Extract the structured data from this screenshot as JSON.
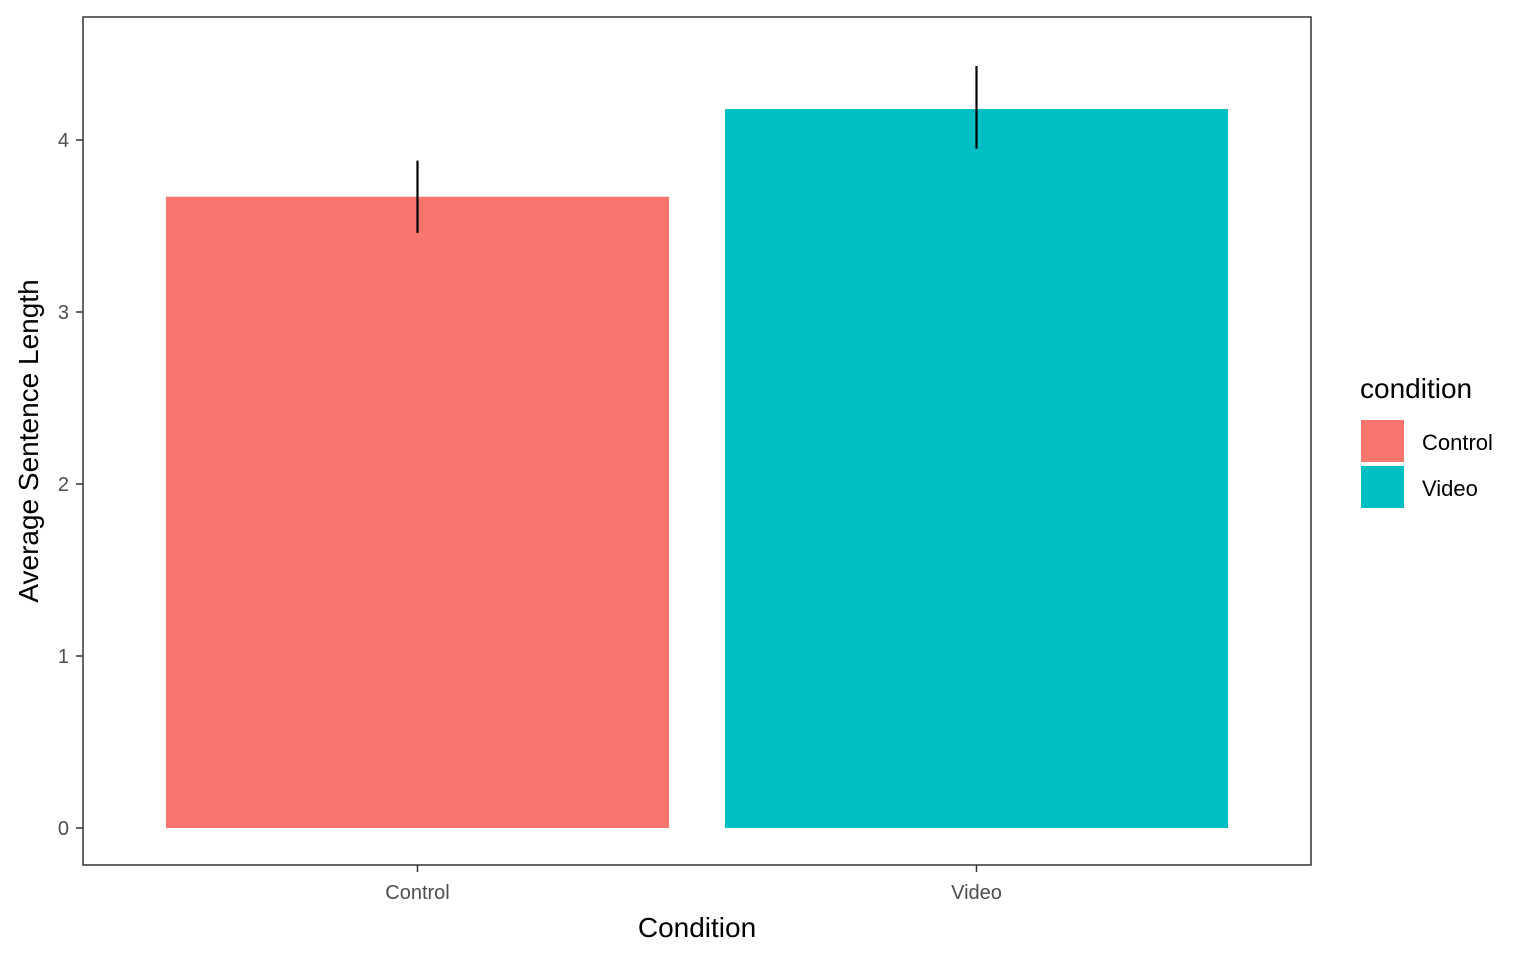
{
  "chart_data": {
    "type": "bar",
    "title": "",
    "xlabel": "Condition",
    "ylabel": "Average Sentence Length",
    "categories": [
      "Control",
      "Video"
    ],
    "values": [
      3.67,
      4.18
    ],
    "error_bars": [
      {
        "low": 3.46,
        "high": 3.88
      },
      {
        "low": 3.95,
        "high": 4.43
      }
    ],
    "colors": [
      "#F8766D",
      "#00BFC4"
    ],
    "ylim": [
      0,
      4.7
    ],
    "yticks": [
      0,
      1,
      2,
      3,
      4
    ],
    "grid": false,
    "legend": {
      "title": "condition",
      "placement": "right",
      "entries": [
        {
          "label": "Control",
          "color": "#F8766D"
        },
        {
          "label": "Video",
          "color": "#00BFC4"
        }
      ]
    }
  }
}
